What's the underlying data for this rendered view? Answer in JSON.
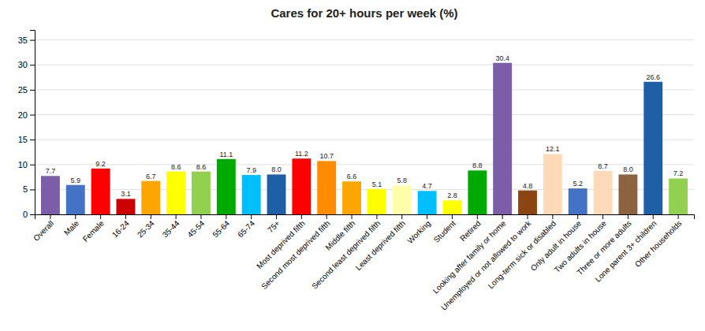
{
  "chart_data": {
    "type": "bar",
    "title": "Cares for 20+ hours per week (%)",
    "categories": [
      "Overall",
      "Male",
      "Female",
      "16-24",
      "25-34",
      "35-44",
      "45-54",
      "55-64",
      "65-74",
      "75+",
      "Most deprived fifth",
      "Second most deprived fifth",
      "Middle fifth",
      "Second least deprived fifth",
      "Least deprived fifth",
      "Working",
      "Student",
      "Retired",
      "Looking after family or home",
      "Unemployed or not allowed to work",
      "Long-term sick or disabled",
      "Only adult in house",
      "Two adults in house",
      "Three or more adults",
      "Lone parent 3+ children",
      "Other households"
    ],
    "values": [
      7.7,
      5.9,
      9.2,
      3.1,
      6.7,
      8.6,
      8.6,
      11.1,
      7.9,
      8.0,
      11.2,
      10.7,
      6.6,
      5.1,
      5.8,
      4.7,
      2.8,
      8.8,
      30.4,
      4.8,
      12.1,
      5.2,
      8.7,
      8.0,
      26.6,
      7.2
    ],
    "value_labels": [
      "7.7",
      "5.9",
      "9.2",
      "3.1",
      "6.7",
      "8.6",
      "8.6",
      "11.1",
      "7.9",
      "8.0",
      "11.2",
      "10.7",
      "6.6",
      "5.1",
      "5.8",
      "4.7",
      "2.8",
      "8.8",
      "30.4",
      "4.8",
      "12.1",
      "5.2",
      "8.7",
      "8.0",
      "26.6",
      "7.2"
    ],
    "colors": [
      "#7B5EA7",
      "#4472C4",
      "#FF0000",
      "#CC0000",
      "#FFA500",
      "#FFFF00",
      "#92D050",
      "#00AA00",
      "#00BFFF",
      "#1F5FA6",
      "#FF0000",
      "#FF8C00",
      "#FFA500",
      "#FFFF00",
      "#FFFFAA",
      "#00BFFF",
      "#FFFF00",
      "#00AA00",
      "#7B5EA7",
      "#8B4513",
      "#FFDAB9",
      "#4472C4",
      "#FFDAB9",
      "#8B6340",
      "#1F5FA6",
      "#92D050"
    ],
    "ylim": [
      0,
      37
    ],
    "yticks": [
      0,
      5,
      10,
      15,
      20,
      25,
      30,
      35
    ],
    "grid": true,
    "data_labels": true
  }
}
